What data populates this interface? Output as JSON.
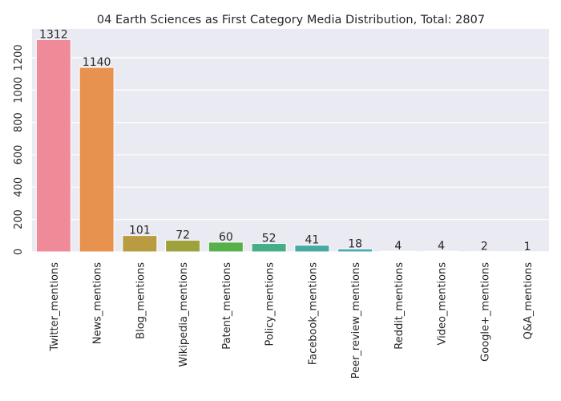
{
  "chart_data": {
    "type": "bar",
    "title": "04 Earth Sciences as First Category Media Distribution, Total: 2807",
    "xlabel": "",
    "ylabel": "",
    "categories": [
      "Twitter_mentions",
      "News_mentions",
      "Blog_mentions",
      "Wikipedia_mentions",
      "Patent_mentions",
      "Policy_mentions",
      "Facebook_mentions",
      "Peer_review_mentions",
      "Reddit_mentions",
      "Video_mentions",
      "Google+_mentions",
      "Q&A_mentions"
    ],
    "values": [
      1312,
      1140,
      101,
      72,
      60,
      52,
      41,
      18,
      4,
      4,
      2,
      1
    ],
    "data_labels": [
      "1312",
      "1140",
      "101",
      "72",
      "60",
      "52",
      "41",
      "18",
      "4",
      "4",
      "2",
      "1"
    ],
    "ylim": [
      0,
      1378
    ],
    "yticks": [
      0,
      200,
      400,
      600,
      800,
      1000,
      1200
    ],
    "ytick_labels": [
      "0",
      "200",
      "400",
      "600",
      "800",
      "1000",
      "1200"
    ],
    "grid": true,
    "legend": "none",
    "colors": [
      "#ef8a98",
      "#e7924f",
      "#b99b42",
      "#9ea23e",
      "#57b04a",
      "#45ae88",
      "#46aba0",
      "#48a9b2",
      "#4ea8cb",
      "#a4a2ec",
      "#e380e4",
      "#f086c2"
    ],
    "background": "#eaeaf2",
    "grid_color": "#ffffff"
  }
}
